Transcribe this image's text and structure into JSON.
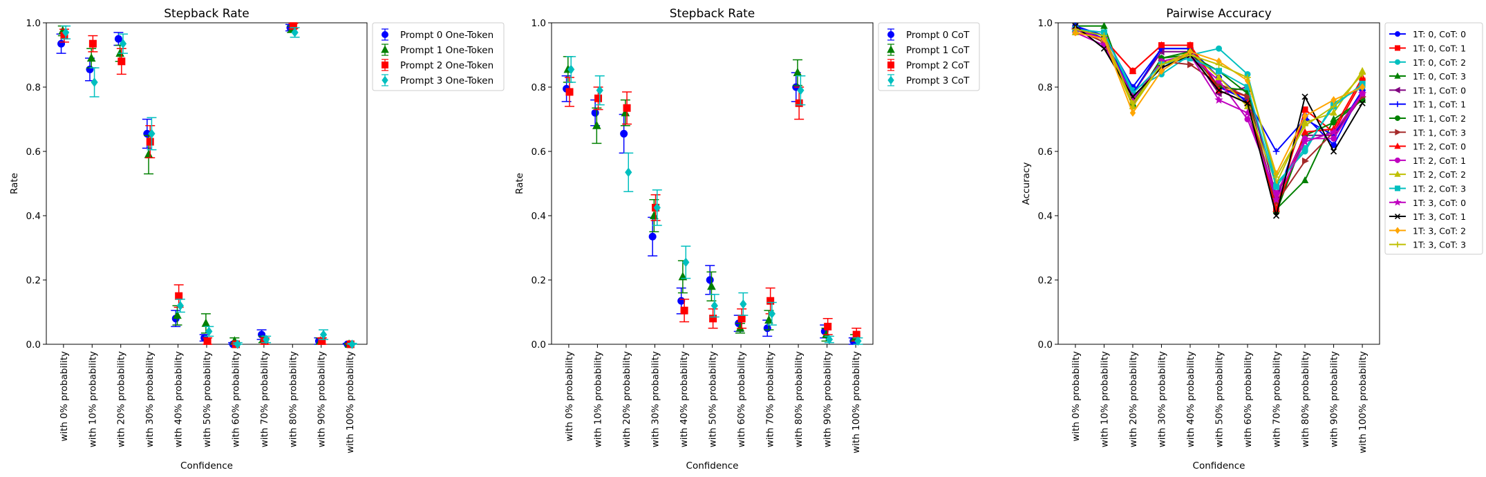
{
  "figure": {
    "panels": [
      "Stepback Rate",
      "Stepback Rate",
      "Pairwise Accuracy"
    ]
  },
  "chart_data": [
    {
      "type": "scatter",
      "title": "Stepback Rate",
      "xlabel": "Confidence",
      "ylabel": "Rate",
      "categories": [
        "with 0% probability",
        "with 10% probability",
        "with 20% probability",
        "with 30% probability",
        "with 40% probability",
        "with 50% probability",
        "with 60% probability",
        "with 70% probability",
        "with 80% probability",
        "with 90% probability",
        "with 100% probability"
      ],
      "yticks": [
        "0.0",
        "0.2",
        "0.4",
        "0.6",
        "0.8",
        "1.0"
      ],
      "ylim": [
        0,
        1
      ],
      "grid": false,
      "legend_position": "outside-right",
      "error_bars": true,
      "series": [
        {
          "name": "Prompt 0 One-Token",
          "color": "#0000ff",
          "marker": "circle",
          "values": [
            0.935,
            0.855,
            0.95,
            0.655,
            0.08,
            0.02,
            0.0,
            0.03,
            0.985,
            0.01,
            0.0
          ],
          "errors": [
            0.03,
            0.035,
            0.02,
            0.045,
            0.025,
            0.01,
            0.005,
            0.015,
            0.01,
            0.01,
            0.003
          ]
        },
        {
          "name": "Prompt 1 One-Token",
          "color": "#008000",
          "marker": "triangle",
          "values": [
            0.975,
            0.89,
            0.905,
            0.59,
            0.09,
            0.065,
            0.01,
            0.015,
            0.98,
            0.01,
            0.0
          ],
          "errors": [
            0.015,
            0.03,
            0.025,
            0.06,
            0.03,
            0.03,
            0.01,
            0.01,
            0.01,
            0.01,
            0.003
          ]
        },
        {
          "name": "Prompt 2 One-Token",
          "color": "#ff0000",
          "marker": "square",
          "values": [
            0.96,
            0.935,
            0.88,
            0.63,
            0.15,
            0.01,
            0.0,
            0.01,
            0.99,
            0.01,
            0.0
          ],
          "errors": [
            0.02,
            0.025,
            0.04,
            0.05,
            0.035,
            0.01,
            0.005,
            0.01,
            0.008,
            0.01,
            0.003
          ]
        },
        {
          "name": "Prompt 3 One-Token",
          "color": "#00bfbf",
          "marker": "diamond",
          "values": [
            0.97,
            0.815,
            0.935,
            0.655,
            0.12,
            0.04,
            0.0,
            0.015,
            0.97,
            0.03,
            0.0
          ],
          "errors": [
            0.02,
            0.045,
            0.03,
            0.05,
            0.02,
            0.015,
            0.005,
            0.01,
            0.015,
            0.015,
            0.003
          ]
        }
      ]
    },
    {
      "type": "scatter",
      "title": "Stepback Rate",
      "xlabel": "Confidence",
      "ylabel": "Rate",
      "categories": [
        "with 0% probability",
        "with 10% probability",
        "with 20% probability",
        "with 30% probability",
        "with 40% probability",
        "with 50% probability",
        "with 60% probability",
        "with 70% probability",
        "with 80% probability",
        "with 90% probability",
        "with 100% probability"
      ],
      "yticks": [
        "0.0",
        "0.2",
        "0.4",
        "0.6",
        "0.8",
        "1.0"
      ],
      "ylim": [
        0,
        1
      ],
      "grid": false,
      "legend_position": "outside-right",
      "error_bars": true,
      "series": [
        {
          "name": "Prompt 0 CoT",
          "color": "#0000ff",
          "marker": "circle",
          "values": [
            0.795,
            0.72,
            0.655,
            0.335,
            0.135,
            0.2,
            0.065,
            0.05,
            0.8,
            0.04,
            0.01
          ],
          "errors": [
            0.04,
            0.04,
            0.06,
            0.06,
            0.04,
            0.045,
            0.025,
            0.025,
            0.045,
            0.02,
            0.01
          ]
        },
        {
          "name": "Prompt 1 CoT",
          "color": "#008000",
          "marker": "triangle",
          "values": [
            0.855,
            0.68,
            0.72,
            0.4,
            0.21,
            0.18,
            0.05,
            0.075,
            0.845,
            0.03,
            0.02
          ],
          "errors": [
            0.04,
            0.055,
            0.04,
            0.05,
            0.05,
            0.045,
            0.015,
            0.03,
            0.04,
            0.02,
            0.01
          ]
        },
        {
          "name": "Prompt 2 CoT",
          "color": "#ff0000",
          "marker": "square",
          "values": [
            0.785,
            0.765,
            0.735,
            0.425,
            0.105,
            0.08,
            0.08,
            0.135,
            0.75,
            0.055,
            0.03
          ],
          "errors": [
            0.045,
            0.035,
            0.05,
            0.04,
            0.035,
            0.03,
            0.03,
            0.04,
            0.05,
            0.025,
            0.02
          ]
        },
        {
          "name": "Prompt 3 CoT",
          "color": "#00bfbf",
          "marker": "diamond",
          "values": [
            0.855,
            0.79,
            0.535,
            0.425,
            0.255,
            0.12,
            0.125,
            0.095,
            0.79,
            0.015,
            0.01
          ],
          "errors": [
            0.04,
            0.045,
            0.06,
            0.055,
            0.05,
            0.035,
            0.035,
            0.035,
            0.045,
            0.01,
            0.01
          ]
        }
      ]
    },
    {
      "type": "line",
      "title": "Pairwise Accuracy",
      "xlabel": "Confidence",
      "ylabel": "Accuracy",
      "categories": [
        "with 0% probability",
        "with 10% probability",
        "with 20% probability",
        "with 30% probability",
        "with 40% probability",
        "with 50% probability",
        "with 60% probability",
        "with 70% probability",
        "with 80% probability",
        "with 90% probability",
        "with 100% probability"
      ],
      "yticks": [
        "0.0",
        "0.2",
        "0.4",
        "0.6",
        "0.8",
        "1.0"
      ],
      "ylim": [
        0,
        1
      ],
      "grid": false,
      "legend_position": "outside-right",
      "series": [
        {
          "name": "1T: 0, CoT: 0",
          "color": "#0000ff",
          "marker": "circle",
          "values": [
            0.99,
            0.96,
            0.8,
            0.92,
            0.92,
            0.83,
            0.75,
            0.45,
            0.71,
            0.62,
            0.79
          ]
        },
        {
          "name": "1T: 0, CoT: 1",
          "color": "#ff0000",
          "marker": "square",
          "values": [
            0.98,
            0.95,
            0.85,
            0.93,
            0.93,
            0.8,
            0.77,
            0.42,
            0.73,
            0.66,
            0.82
          ]
        },
        {
          "name": "1T: 0, CoT: 2",
          "color": "#00bfbf",
          "marker": "circle",
          "values": [
            0.98,
            0.97,
            0.79,
            0.84,
            0.9,
            0.92,
            0.84,
            0.5,
            0.6,
            0.75,
            0.8
          ]
        },
        {
          "name": "1T: 0, CoT: 3",
          "color": "#008000",
          "marker": "triangle",
          "values": [
            0.99,
            0.99,
            0.75,
            0.89,
            0.9,
            0.85,
            0.78,
            0.42,
            0.51,
            0.7,
            0.76
          ]
        },
        {
          "name": "1T: 1, CoT: 0",
          "color": "#800080",
          "marker": "tri-left",
          "values": [
            0.98,
            0.94,
            0.78,
            0.91,
            0.91,
            0.78,
            0.8,
            0.46,
            0.65,
            0.65,
            0.77
          ]
        },
        {
          "name": "1T: 1, CoT: 1",
          "color": "#0000ff",
          "marker": "plus",
          "values": [
            0.99,
            0.95,
            0.78,
            0.92,
            0.92,
            0.8,
            0.76,
            0.6,
            0.7,
            0.65,
            0.79
          ]
        },
        {
          "name": "1T: 1, CoT: 2",
          "color": "#008000",
          "marker": "circle",
          "values": [
            0.98,
            0.96,
            0.74,
            0.89,
            0.91,
            0.8,
            0.79,
            0.41,
            0.65,
            0.69,
            0.76
          ]
        },
        {
          "name": "1T: 1, CoT: 3",
          "color": "#a52a2a",
          "marker": "tri-right",
          "values": [
            0.98,
            0.94,
            0.76,
            0.88,
            0.87,
            0.81,
            0.77,
            0.44,
            0.57,
            0.66,
            0.77
          ]
        },
        {
          "name": "1T: 2, CoT: 0",
          "color": "#ff0000",
          "marker": "triangle",
          "values": [
            0.98,
            0.95,
            0.85,
            0.93,
            0.93,
            0.79,
            0.75,
            0.42,
            0.66,
            0.67,
            0.83
          ]
        },
        {
          "name": "1T: 2, CoT: 1",
          "color": "#bf00bf",
          "marker": "circle",
          "values": [
            0.97,
            0.93,
            0.76,
            0.88,
            0.9,
            0.82,
            0.7,
            0.47,
            0.64,
            0.64,
            0.78
          ]
        },
        {
          "name": "1T: 2, CoT: 2",
          "color": "#bfbf00",
          "marker": "triangle",
          "values": [
            0.97,
            0.95,
            0.74,
            0.87,
            0.91,
            0.83,
            0.74,
            0.5,
            0.69,
            0.72,
            0.85
          ]
        },
        {
          "name": "1T: 2, CoT: 3",
          "color": "#00bfbf",
          "marker": "square",
          "values": [
            0.98,
            0.97,
            0.78,
            0.87,
            0.89,
            0.85,
            0.8,
            0.49,
            0.61,
            0.74,
            0.81
          ]
        },
        {
          "name": "1T: 3, CoT: 0",
          "color": "#bf00bf",
          "marker": "star",
          "values": [
            0.98,
            0.95,
            0.77,
            0.86,
            0.9,
            0.76,
            0.72,
            0.45,
            0.63,
            0.66,
            0.78
          ]
        },
        {
          "name": "1T: 3, CoT: 1",
          "color": "#000000",
          "marker": "x",
          "values": [
            0.99,
            0.92,
            0.77,
            0.86,
            0.9,
            0.79,
            0.75,
            0.4,
            0.77,
            0.6,
            0.75
          ]
        },
        {
          "name": "1T: 3, CoT: 2",
          "color": "#ffa500",
          "marker": "diamond",
          "values": [
            0.97,
            0.95,
            0.72,
            0.85,
            0.91,
            0.88,
            0.82,
            0.53,
            0.71,
            0.76,
            0.8
          ]
        },
        {
          "name": "1T: 3, CoT: 3",
          "color": "#bfbf00",
          "marker": "plus",
          "values": [
            0.98,
            0.96,
            0.75,
            0.87,
            0.9,
            0.87,
            0.83,
            0.52,
            0.68,
            0.74,
            0.84
          ]
        }
      ]
    }
  ]
}
